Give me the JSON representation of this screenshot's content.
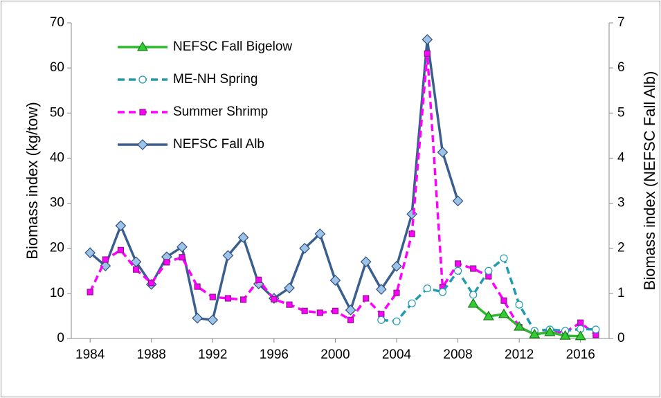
{
  "chart_data": {
    "type": "line",
    "x": [
      1984,
      1985,
      1986,
      1987,
      1988,
      1989,
      1990,
      1991,
      1992,
      1993,
      1994,
      1995,
      1996,
      1997,
      1998,
      1999,
      2000,
      2001,
      2002,
      2003,
      2004,
      2005,
      2006,
      2007,
      2008,
      2009,
      2010,
      2011,
      2012,
      2013,
      2014,
      2015,
      2016,
      2017
    ],
    "xlim": [
      1983,
      2018
    ],
    "xticks": [
      1984,
      1988,
      1992,
      1996,
      2000,
      2004,
      2008,
      2012,
      2016
    ],
    "ylim": [
      0,
      70
    ],
    "yticks": [
      0,
      10,
      20,
      30,
      40,
      50,
      60,
      70
    ],
    "y2lim": [
      0,
      7
    ],
    "y2ticks": [
      0,
      1,
      2,
      3,
      4,
      5,
      6,
      7
    ],
    "ylabel": "Biomass index (kg/tow)",
    "y2label": "Biomass index (NEFSC Fall Alb)",
    "legend": "upper left",
    "series": [
      {
        "name": "NEFSC Fall Bigelow",
        "color": "#2eb82e",
        "marker": "triangle",
        "dash": false,
        "values": [
          null,
          null,
          null,
          null,
          null,
          null,
          null,
          null,
          null,
          null,
          null,
          null,
          null,
          null,
          null,
          null,
          null,
          null,
          null,
          null,
          null,
          null,
          null,
          null,
          null,
          7.7,
          4.9,
          5.4,
          2.6,
          0.9,
          1.4,
          0.6,
          0.5,
          null
        ]
      },
      {
        "name": "ME-NH Spring",
        "color": "#1f9bb0",
        "marker": "circle",
        "dash": true,
        "values": [
          null,
          null,
          null,
          null,
          null,
          null,
          null,
          null,
          null,
          null,
          null,
          null,
          null,
          null,
          null,
          null,
          null,
          null,
          null,
          4.1,
          3.8,
          7.8,
          11.1,
          10.3,
          15.0,
          9.7,
          15.0,
          17.8,
          7.5,
          1.7,
          2.0,
          1.7,
          2.1,
          2.0
        ]
      },
      {
        "name": "Summer Shrimp",
        "color": "#ff00ff",
        "marker": "square",
        "dash": true,
        "values": [
          10.3,
          17.5,
          19.6,
          15.3,
          12.3,
          16.9,
          18.0,
          11.5,
          9.2,
          8.9,
          8.6,
          13.0,
          8.7,
          7.5,
          6.1,
          5.7,
          6.1,
          4.1,
          8.9,
          5.4,
          10.1,
          23.2,
          63.2,
          11.4,
          16.6,
          15.5,
          13.8,
          8.4,
          2.5,
          0.9,
          1.5,
          1.4,
          3.5,
          0.8
        ]
      },
      {
        "name": "NEFSC Fall Alb",
        "color": "#3a5f8f",
        "marker": "diamond",
        "dash": false,
        "axis": "y2",
        "values": [
          1.9,
          1.61,
          2.5,
          1.7,
          1.2,
          1.81,
          2.03,
          0.45,
          0.41,
          1.84,
          2.24,
          1.21,
          0.89,
          1.12,
          2.0,
          2.32,
          1.29,
          0.63,
          1.7,
          1.09,
          1.6,
          2.76,
          6.63,
          4.13,
          3.05,
          null,
          null,
          null,
          null,
          null,
          null,
          null,
          null,
          null
        ]
      }
    ]
  }
}
